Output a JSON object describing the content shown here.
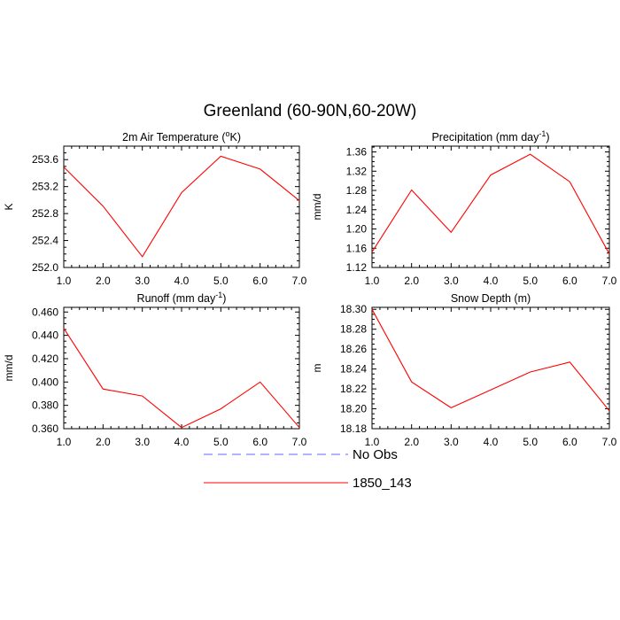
{
  "figure": {
    "title": "Greenland (60-90N,60-20W)"
  },
  "chart_data": [
    {
      "type": "line",
      "title": "2m Air Temperature (oK)",
      "title_parts": {
        "before": "2m Air Temperature (",
        "sup": "o",
        "after": "K)"
      },
      "xlabel": "",
      "ylabel": "K",
      "x": [
        1,
        2,
        3,
        4,
        5,
        6,
        7
      ],
      "xticks": [
        "1.0",
        "2.0",
        "3.0",
        "4.0",
        "5.0",
        "6.0",
        "7.0"
      ],
      "xlim": [
        1,
        7
      ],
      "ylim": [
        252.0,
        253.8
      ],
      "yticks": [
        "252.0",
        "252.4",
        "252.8",
        "253.2",
        "253.6"
      ],
      "yticks_values": [
        252.0,
        252.4,
        252.8,
        253.2,
        253.6
      ],
      "series": [
        {
          "name": "1850_143",
          "color": "#ff0000",
          "values": [
            253.49,
            252.91,
            252.16,
            253.11,
            253.65,
            253.46,
            252.99
          ]
        }
      ]
    },
    {
      "type": "line",
      "title": "Precipitation (mm day-1)",
      "title_parts": {
        "before": "Precipitation (mm day",
        "sup": "-1",
        "after": ")"
      },
      "xlabel": "",
      "ylabel": "mm/d",
      "x": [
        1,
        2,
        3,
        4,
        5,
        6,
        7
      ],
      "xticks": [
        "1.0",
        "2.0",
        "3.0",
        "4.0",
        "5.0",
        "6.0",
        "7.0"
      ],
      "xlim": [
        1,
        7
      ],
      "ylim": [
        1.12,
        1.372
      ],
      "yticks": [
        "1.12",
        "1.16",
        "1.20",
        "1.24",
        "1.28",
        "1.32",
        "1.36"
      ],
      "yticks_values": [
        1.12,
        1.16,
        1.2,
        1.24,
        1.28,
        1.32,
        1.36
      ],
      "series": [
        {
          "name": "1850_143",
          "color": "#ff0000",
          "values": [
            1.152,
            1.281,
            1.193,
            1.312,
            1.355,
            1.298,
            1.148
          ]
        }
      ]
    },
    {
      "type": "line",
      "title": "Runoff (mm day-1)",
      "title_parts": {
        "before": "Runoff (mm day",
        "sup": "-1",
        "after": ")"
      },
      "xlabel": "",
      "ylabel": "mm/d",
      "x": [
        1,
        2,
        3,
        4,
        5,
        6,
        7
      ],
      "xticks": [
        "1.0",
        "2.0",
        "3.0",
        "4.0",
        "5.0",
        "6.0",
        "7.0"
      ],
      "xlim": [
        1,
        7
      ],
      "ylim": [
        0.36,
        0.464
      ],
      "yticks": [
        "0.360",
        "0.380",
        "0.400",
        "0.420",
        "0.440",
        "0.460"
      ],
      "yticks_values": [
        0.36,
        0.38,
        0.4,
        0.42,
        0.44,
        0.46
      ],
      "series": [
        {
          "name": "1850_143",
          "color": "#ff0000",
          "values": [
            0.446,
            0.394,
            0.388,
            0.361,
            0.377,
            0.4,
            0.361
          ]
        }
      ]
    },
    {
      "type": "line",
      "title": "Snow Depth (m)",
      "title_parts": {
        "before": "Snow Depth (m)",
        "sup": "",
        "after": ""
      },
      "xlabel": "",
      "ylabel": "m",
      "x": [
        1,
        2,
        3,
        4,
        5,
        6,
        7
      ],
      "xticks": [
        "1.0",
        "2.0",
        "3.0",
        "4.0",
        "5.0",
        "6.0",
        "7.0"
      ],
      "xlim": [
        1,
        7
      ],
      "ylim": [
        18.18,
        18.302
      ],
      "yticks": [
        "18.18",
        "18.20",
        "18.22",
        "18.24",
        "18.26",
        "18.28",
        "18.30"
      ],
      "yticks_values": [
        18.18,
        18.2,
        18.22,
        18.24,
        18.26,
        18.28,
        18.3
      ],
      "series": [
        {
          "name": "1850_143",
          "color": "#ff0000",
          "values": [
            18.3,
            18.227,
            18.201,
            18.219,
            18.237,
            18.247,
            18.198
          ]
        }
      ]
    }
  ],
  "legend": {
    "entries": [
      {
        "label": "No Obs",
        "color": "#6666ff",
        "style": "dashed"
      },
      {
        "label": "1850_143",
        "color": "#ff0000",
        "style": "solid"
      }
    ]
  }
}
